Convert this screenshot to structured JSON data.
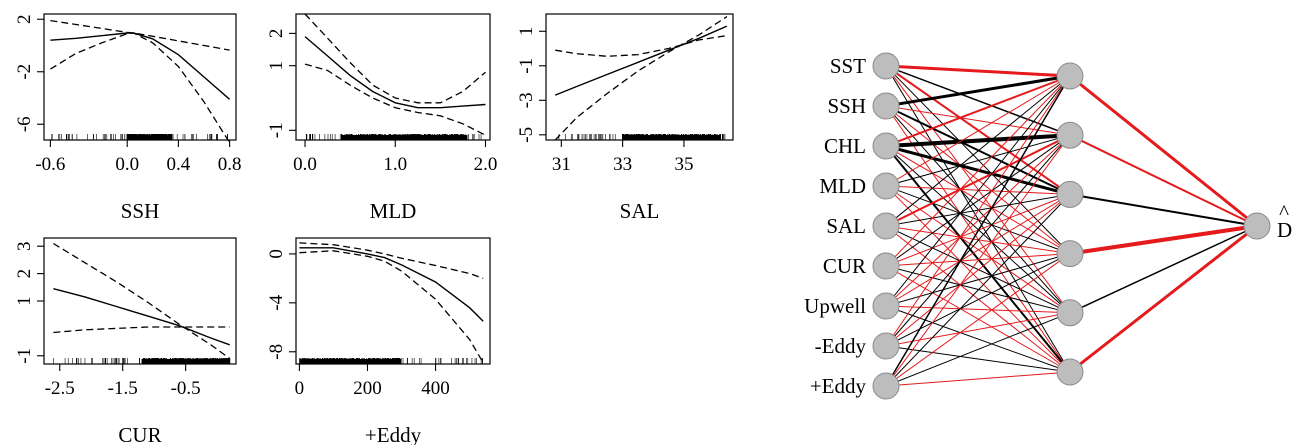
{
  "chart_data": [
    {
      "type": "line",
      "xlabel": "SSH",
      "xlim": [
        -0.65,
        0.85
      ],
      "ylim": [
        -7.2,
        2.4
      ],
      "xticks": [
        "-0.6",
        "0.0",
        "0.4",
        "0.8"
      ],
      "yticks": [
        "2",
        "-2",
        "-6"
      ],
      "series": [
        {
          "role": "fit",
          "x": [
            -0.6,
            -0.4,
            -0.2,
            0.0,
            0.05,
            0.2,
            0.4,
            0.6,
            0.8
          ],
          "y": [
            0.4,
            0.55,
            0.75,
            0.95,
            0.95,
            0.5,
            -0.7,
            -2.4,
            -4.1
          ]
        },
        {
          "role": "upper",
          "x": [
            -0.6,
            -0.4,
            -0.2,
            0.0,
            0.05,
            0.2,
            0.4,
            0.6,
            0.8
          ],
          "y": [
            1.9,
            1.6,
            1.3,
            1.0,
            0.95,
            0.7,
            0.35,
            0.0,
            -0.35
          ]
        },
        {
          "role": "lower",
          "x": [
            -0.6,
            -0.4,
            -0.2,
            0.0,
            0.05,
            0.2,
            0.4,
            0.6,
            0.8
          ],
          "y": [
            -1.8,
            -0.6,
            0.2,
            0.9,
            0.95,
            0.2,
            -1.6,
            -4.3,
            -7.4
          ]
        }
      ],
      "rug": {
        "from": -0.6,
        "to": 0.82,
        "dense_from": 0.0,
        "dense_to": 0.35
      }
    },
    {
      "type": "line",
      "xlabel": "MLD",
      "xlim": [
        -0.1,
        2.05
      ],
      "ylim": [
        -1.3,
        2.6
      ],
      "xticks": [
        "0.0",
        "1.0",
        "2.0"
      ],
      "yticks": [
        "2",
        "1",
        "-1"
      ],
      "series": [
        {
          "role": "fit",
          "x": [
            0.0,
            0.25,
            0.5,
            0.75,
            1.0,
            1.25,
            1.5,
            1.75,
            2.0
          ],
          "y": [
            1.9,
            1.3,
            0.7,
            0.2,
            -0.15,
            -0.3,
            -0.3,
            -0.25,
            -0.2
          ]
        },
        {
          "role": "upper",
          "x": [
            0.0,
            0.25,
            0.5,
            0.75,
            1.0,
            1.25,
            1.5,
            1.75,
            2.0
          ],
          "y": [
            2.6,
            1.85,
            1.1,
            0.4,
            0.0,
            -0.15,
            -0.15,
            0.2,
            0.8
          ]
        },
        {
          "role": "lower",
          "x": [
            0.0,
            0.25,
            0.5,
            0.75,
            1.0,
            1.25,
            1.5,
            1.75,
            2.0
          ],
          "y": [
            1.05,
            0.85,
            0.4,
            0.0,
            -0.3,
            -0.45,
            -0.55,
            -0.8,
            -1.15
          ]
        }
      ],
      "rug": {
        "from": 0.0,
        "to": 2.0,
        "dense_from": 0.4,
        "dense_to": 1.8
      }
    },
    {
      "type": "line",
      "xlabel": "SAL",
      "xlim": [
        30.5,
        36.6
      ],
      "ylim": [
        -5.3,
        2.0
      ],
      "xticks": [
        "31",
        "33",
        "35"
      ],
      "yticks": [
        "1",
        "-1",
        "-3",
        "-5"
      ],
      "series": [
        {
          "role": "fit",
          "x": [
            30.8,
            31.5,
            32.5,
            33.5,
            34.5,
            35.5,
            36.4
          ],
          "y": [
            -2.7,
            -2.2,
            -1.5,
            -0.8,
            -0.1,
            0.6,
            1.3
          ]
        },
        {
          "role": "upper",
          "x": [
            30.8,
            31.5,
            32.5,
            33.5,
            34.5,
            35.5,
            36.4
          ],
          "y": [
            -0.1,
            -0.3,
            -0.45,
            -0.35,
            0.0,
            0.5,
            0.75
          ]
        },
        {
          "role": "lower",
          "x": [
            30.8,
            31.5,
            32.5,
            33.5,
            34.5,
            35.5,
            36.4
          ],
          "y": [
            -5.3,
            -4.0,
            -2.6,
            -1.3,
            -0.2,
            0.8,
            1.85
          ]
        }
      ],
      "rug": {
        "from": 30.9,
        "to": 36.4,
        "dense_from": 33.0,
        "dense_to": 36.2
      }
    },
    {
      "type": "line",
      "xlabel": "CUR",
      "xlim": [
        -2.75,
        0.3
      ],
      "ylim": [
        -1.3,
        3.3
      ],
      "xticks": [
        "-2.5",
        "-1.5",
        "-0.5"
      ],
      "yticks": [
        "3",
        "2",
        "1",
        "-1"
      ],
      "series": [
        {
          "role": "fit",
          "x": [
            -2.6,
            -2.1,
            -1.6,
            -1.1,
            -0.6,
            -0.1,
            0.2
          ],
          "y": [
            1.45,
            1.15,
            0.8,
            0.45,
            0.1,
            -0.35,
            -0.6
          ]
        },
        {
          "role": "upper",
          "x": [
            -2.6,
            -2.1,
            -1.6,
            -1.1,
            -0.6,
            -0.1,
            0.2
          ],
          "y": [
            3.1,
            2.4,
            1.7,
            0.95,
            0.15,
            -0.6,
            -1.1
          ]
        },
        {
          "role": "lower",
          "x": [
            -2.6,
            -2.1,
            -1.6,
            -1.1,
            -0.6,
            -0.1,
            0.2
          ],
          "y": [
            -0.15,
            -0.05,
            0.0,
            0.05,
            0.05,
            0.05,
            0.05
          ]
        }
      ],
      "rug": {
        "from": -2.6,
        "to": 0.25,
        "dense_from": -1.2,
        "dense_to": 0.2
      }
    },
    {
      "type": "line",
      "xlabel": "+Eddy",
      "xlim": [
        -10,
        560
      ],
      "ylim": [
        -9.0,
        1.3
      ],
      "xticks": [
        "0",
        "200",
        "400"
      ],
      "yticks": [
        "0",
        "-4",
        "-8"
      ],
      "series": [
        {
          "role": "fit",
          "x": [
            0,
            100,
            200,
            250,
            300,
            400,
            500,
            540
          ],
          "y": [
            0.5,
            0.5,
            0.0,
            -0.3,
            -0.9,
            -2.3,
            -4.4,
            -5.5
          ]
        },
        {
          "role": "upper",
          "x": [
            0,
            100,
            200,
            250,
            300,
            400,
            500,
            540
          ],
          "y": [
            0.9,
            0.75,
            0.3,
            0.0,
            -0.35,
            -0.95,
            -1.6,
            -2.0
          ]
        },
        {
          "role": "lower",
          "x": [
            0,
            100,
            200,
            250,
            300,
            400,
            500,
            540
          ],
          "y": [
            0.1,
            0.25,
            -0.2,
            -0.6,
            -1.4,
            -3.7,
            -7.0,
            -8.9
          ]
        }
      ],
      "rug": {
        "from": 0,
        "to": 540,
        "dense_from": 0,
        "dense_to": 300
      }
    }
  ],
  "network": {
    "inputs": [
      "SST",
      "SSH",
      "CHL",
      "MLD",
      "SAL",
      "CUR",
      "Upwell",
      "-Eddy",
      "+Eddy"
    ],
    "hidden_count": 6,
    "output": "D",
    "output_hat": "^",
    "colors": {
      "positive": "#000000",
      "negative": "#e41a1c",
      "node_fill": "#bdbdbd"
    },
    "input_hidden": [
      [
        [
          3,
          "n",
          2
        ],
        [
          1.5,
          "p",
          1
        ],
        [
          2,
          "n",
          2
        ],
        [
          1,
          "p",
          1
        ],
        [
          1,
          "n",
          1
        ],
        [
          1,
          "p",
          1
        ]
      ],
      [
        [
          3,
          "p",
          1
        ],
        [
          1,
          "n",
          1
        ],
        [
          2,
          "p",
          1
        ],
        [
          1,
          "n",
          1
        ],
        [
          1,
          "p",
          1
        ],
        [
          1,
          "n",
          1
        ]
      ],
      [
        [
          2,
          "n",
          1
        ],
        [
          4,
          "p",
          1
        ],
        [
          3,
          "p",
          1
        ],
        [
          1,
          "n",
          1
        ],
        [
          1,
          "p",
          1
        ],
        [
          2,
          "p",
          1
        ]
      ],
      [
        [
          1,
          "n",
          1
        ],
        [
          1,
          "p",
          1
        ],
        [
          1,
          "n",
          1
        ],
        [
          1,
          "p",
          1
        ],
        [
          1,
          "n",
          1
        ],
        [
          1,
          "n",
          1
        ]
      ],
      [
        [
          1,
          "p",
          1
        ],
        [
          2,
          "n",
          1
        ],
        [
          1,
          "p",
          1
        ],
        [
          1,
          "n",
          1
        ],
        [
          1,
          "p",
          1
        ],
        [
          1,
          "n",
          1
        ]
      ],
      [
        [
          1,
          "n",
          1
        ],
        [
          1,
          "p",
          1
        ],
        [
          1,
          "n",
          1
        ],
        [
          1,
          "n",
          1
        ],
        [
          1,
          "p",
          1
        ],
        [
          1,
          "n",
          1
        ]
      ],
      [
        [
          1,
          "p",
          1
        ],
        [
          1,
          "n",
          1
        ],
        [
          1,
          "n",
          1
        ],
        [
          1,
          "p",
          1
        ],
        [
          1,
          "n",
          1
        ],
        [
          1,
          "p",
          1
        ]
      ],
      [
        [
          1,
          "n",
          1
        ],
        [
          1,
          "p",
          1
        ],
        [
          1,
          "n",
          1
        ],
        [
          1,
          "p",
          1
        ],
        [
          1,
          "n",
          1
        ],
        [
          1,
          "p",
          1
        ]
      ],
      [
        [
          1.5,
          "p",
          1
        ],
        [
          1,
          "n",
          1
        ],
        [
          1,
          "p",
          1
        ],
        [
          1,
          "n",
          1
        ],
        [
          1,
          "p",
          1
        ],
        [
          1,
          "n",
          1
        ]
      ]
    ],
    "hidden_output": [
      [
        3,
        "n"
      ],
      [
        2,
        "n"
      ],
      [
        2,
        "p"
      ],
      [
        4,
        "n"
      ],
      [
        1.5,
        "p"
      ],
      [
        3,
        "n"
      ]
    ]
  }
}
